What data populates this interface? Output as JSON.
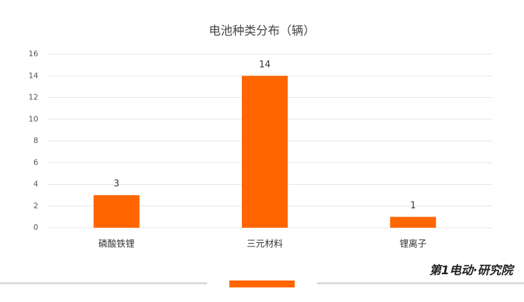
{
  "chart_data": {
    "type": "bar",
    "title": "电池种类分布（辆）",
    "categories": [
      "磷酸铁锂",
      "三元材料",
      "锂离子"
    ],
    "values": [
      3,
      14,
      1
    ],
    "color": "#ff6600",
    "ylim": [
      0,
      16
    ],
    "yticks": [
      0,
      2,
      4,
      6,
      8,
      10,
      12,
      14,
      16
    ],
    "grid": true,
    "data_labels": true
  },
  "branding": "第1电动·研究院"
}
